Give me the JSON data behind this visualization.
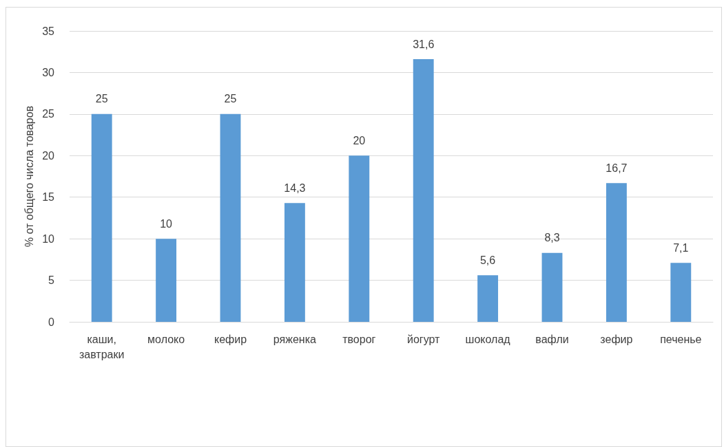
{
  "chart_data": {
    "type": "bar",
    "ylabel": "% от общего числа товаров",
    "categories": [
      "каши, завтраки",
      "молоко",
      "кефир",
      "ряженка",
      "творог",
      "йогурт",
      "шоколад",
      "вафли",
      "зефир",
      "печенье"
    ],
    "values": [
      25,
      10,
      25,
      14.3,
      20,
      31.6,
      5.6,
      8.3,
      16.7,
      7.1
    ],
    "value_labels": [
      "25",
      "10",
      "25",
      "14,3",
      "20",
      "31,6",
      "5,6",
      "8,3",
      "16,7",
      "7,1"
    ],
    "color": "#5b9bd5",
    "ylim": [
      0,
      35
    ],
    "yticks": [
      0,
      5,
      10,
      15,
      20,
      25,
      30,
      35
    ],
    "grid": "y"
  }
}
